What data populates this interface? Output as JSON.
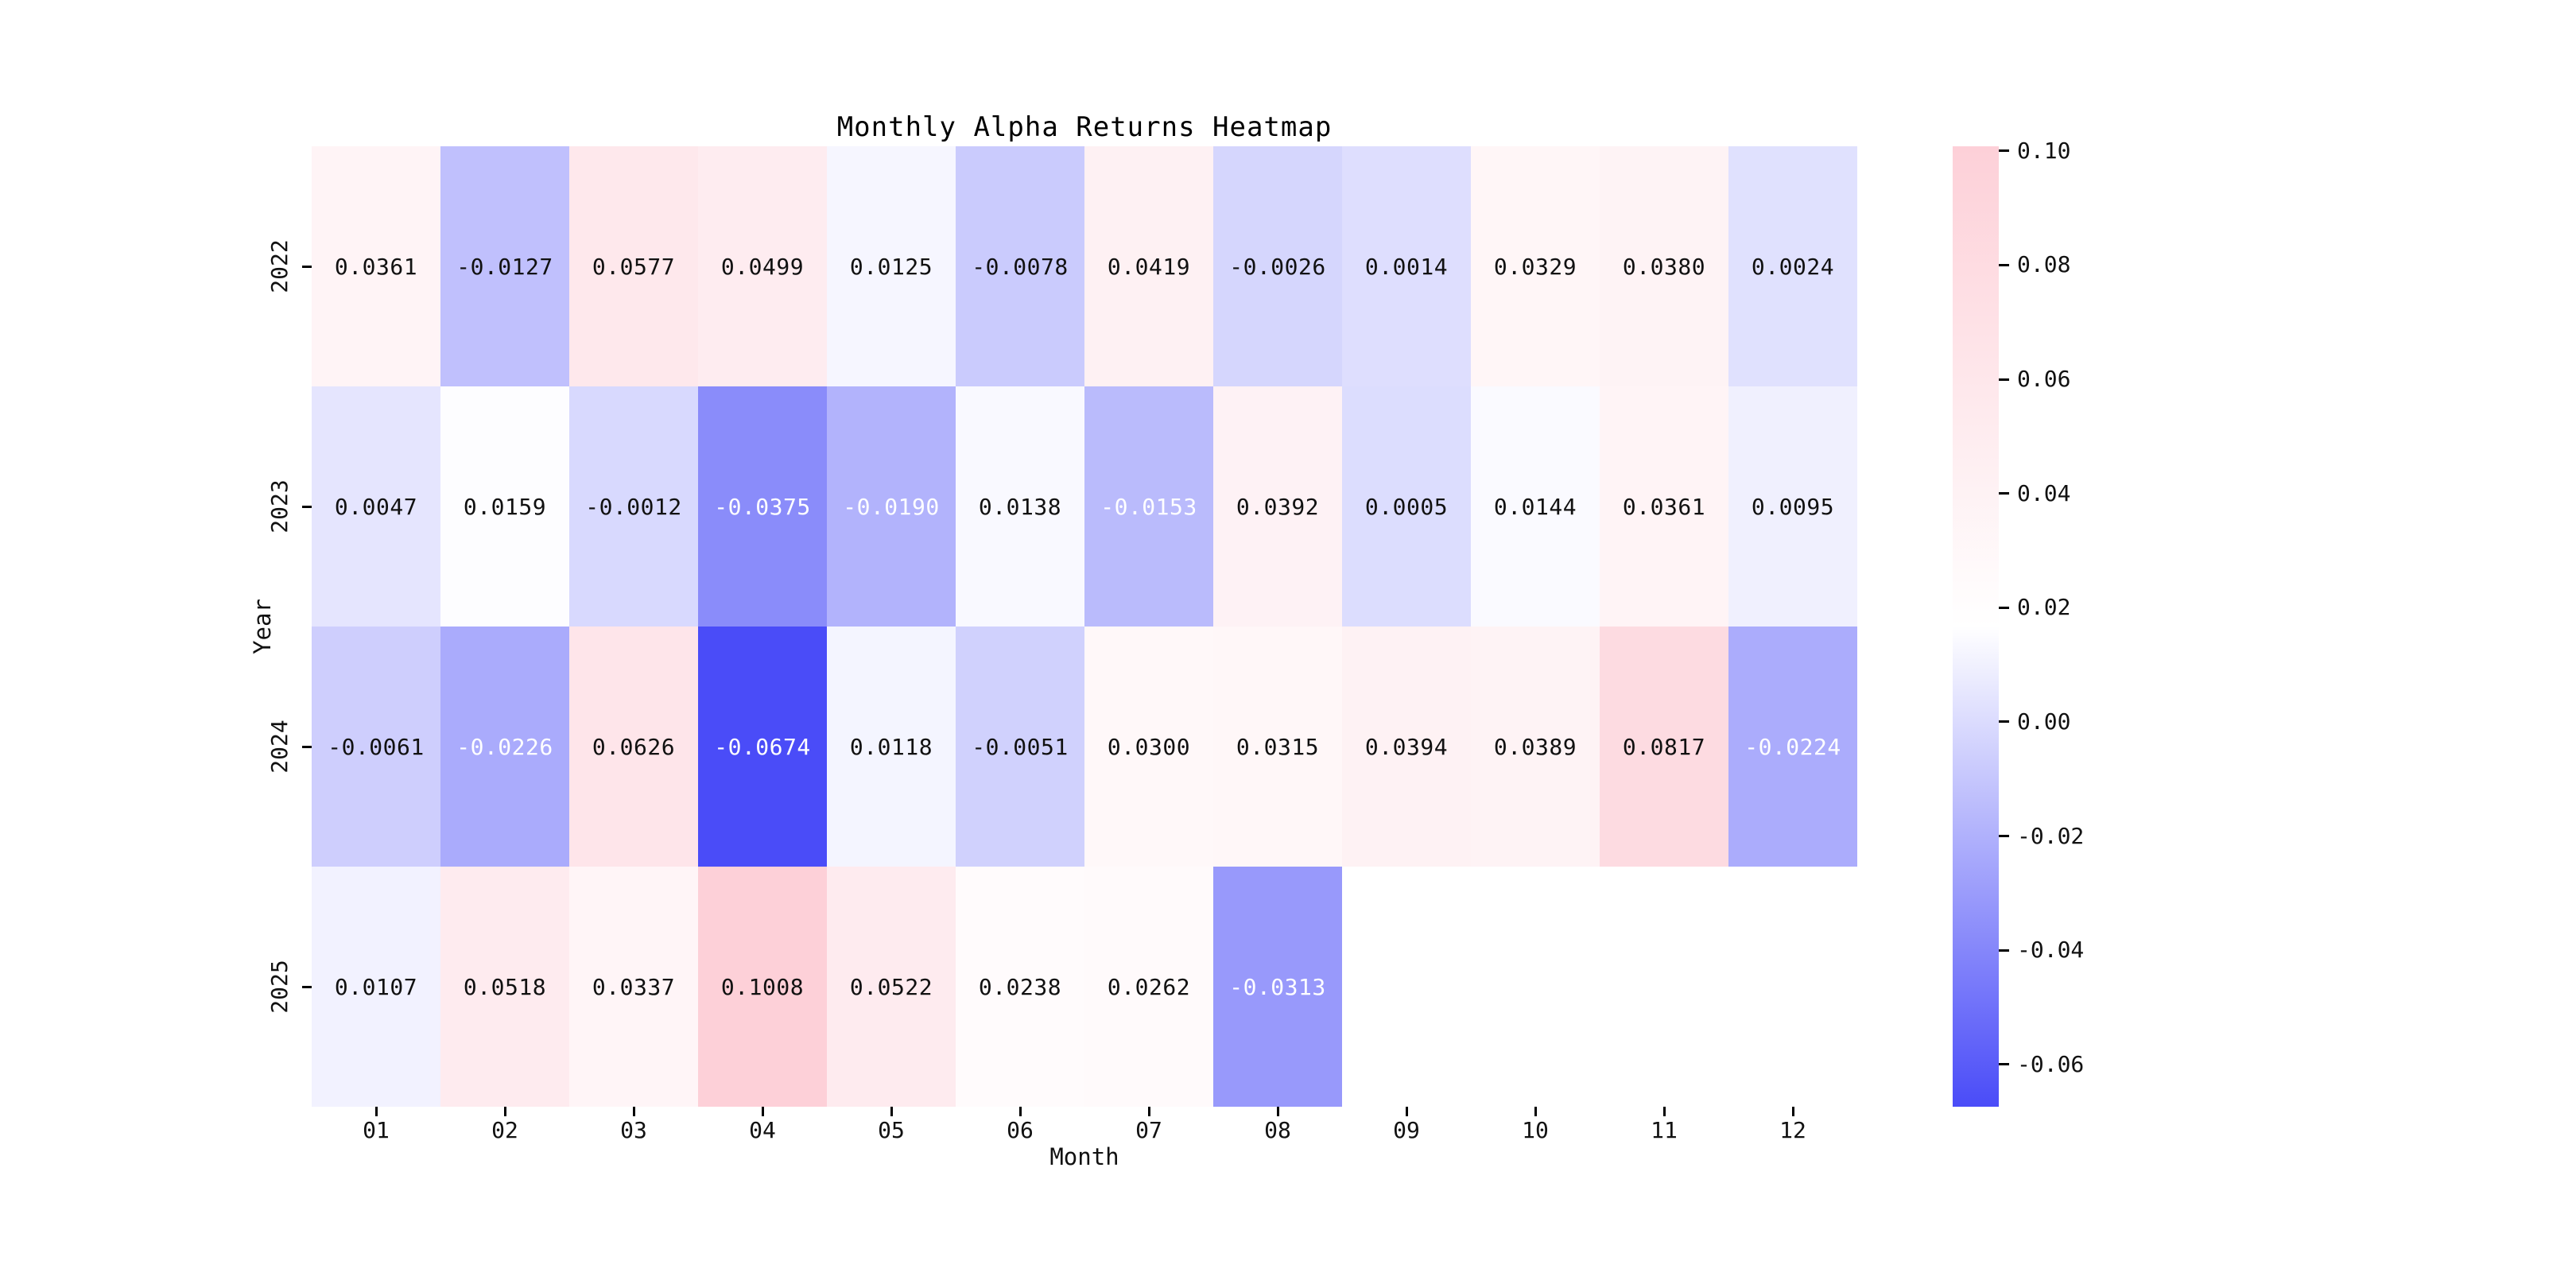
{
  "figure": {
    "background": "#ffffff"
  },
  "chart_data": {
    "type": "heatmap",
    "title": "Monthly Alpha Returns Heatmap",
    "xlabel": "Month",
    "ylabel": "Year",
    "columns": [
      "01",
      "02",
      "03",
      "04",
      "05",
      "06",
      "07",
      "08",
      "09",
      "10",
      "11",
      "12"
    ],
    "rows": [
      "2022",
      "2023",
      "2024",
      "2025"
    ],
    "values": [
      [
        0.0361,
        -0.0127,
        0.0577,
        0.0499,
        0.0125,
        -0.0078,
        0.0419,
        -0.0026,
        0.0014,
        0.0329,
        0.038,
        0.0024
      ],
      [
        0.0047,
        0.0159,
        -0.0012,
        -0.0375,
        -0.019,
        0.0138,
        -0.0153,
        0.0392,
        0.0005,
        0.0144,
        0.0361,
        0.0095
      ],
      [
        -0.0061,
        -0.0226,
        0.0626,
        -0.0674,
        0.0118,
        -0.0051,
        0.03,
        0.0315,
        0.0394,
        0.0389,
        0.0817,
        -0.0224
      ],
      [
        0.0107,
        0.0518,
        0.0337,
        0.1008,
        0.0522,
        0.0238,
        0.0262,
        -0.0313,
        null,
        null,
        null,
        null
      ]
    ],
    "vmin": -0.0674,
    "vmax": 0.1008,
    "annotation_decimals": 4,
    "white_text_threshold": -0.015,
    "grid": false,
    "colorbar": {
      "position": "right",
      "ticks": [
        0.1,
        0.08,
        0.06,
        0.04,
        0.02,
        0.0,
        -0.02,
        -0.04,
        -0.06
      ],
      "tick_decimals": 2
    },
    "colors": {
      "low": "#4a4cf8",
      "mid": "#ffffff",
      "high": "#fdd0d8",
      "annotation_dark": "#111111",
      "annotation_light": "#ffffff",
      "axis_text": "#000000"
    }
  }
}
